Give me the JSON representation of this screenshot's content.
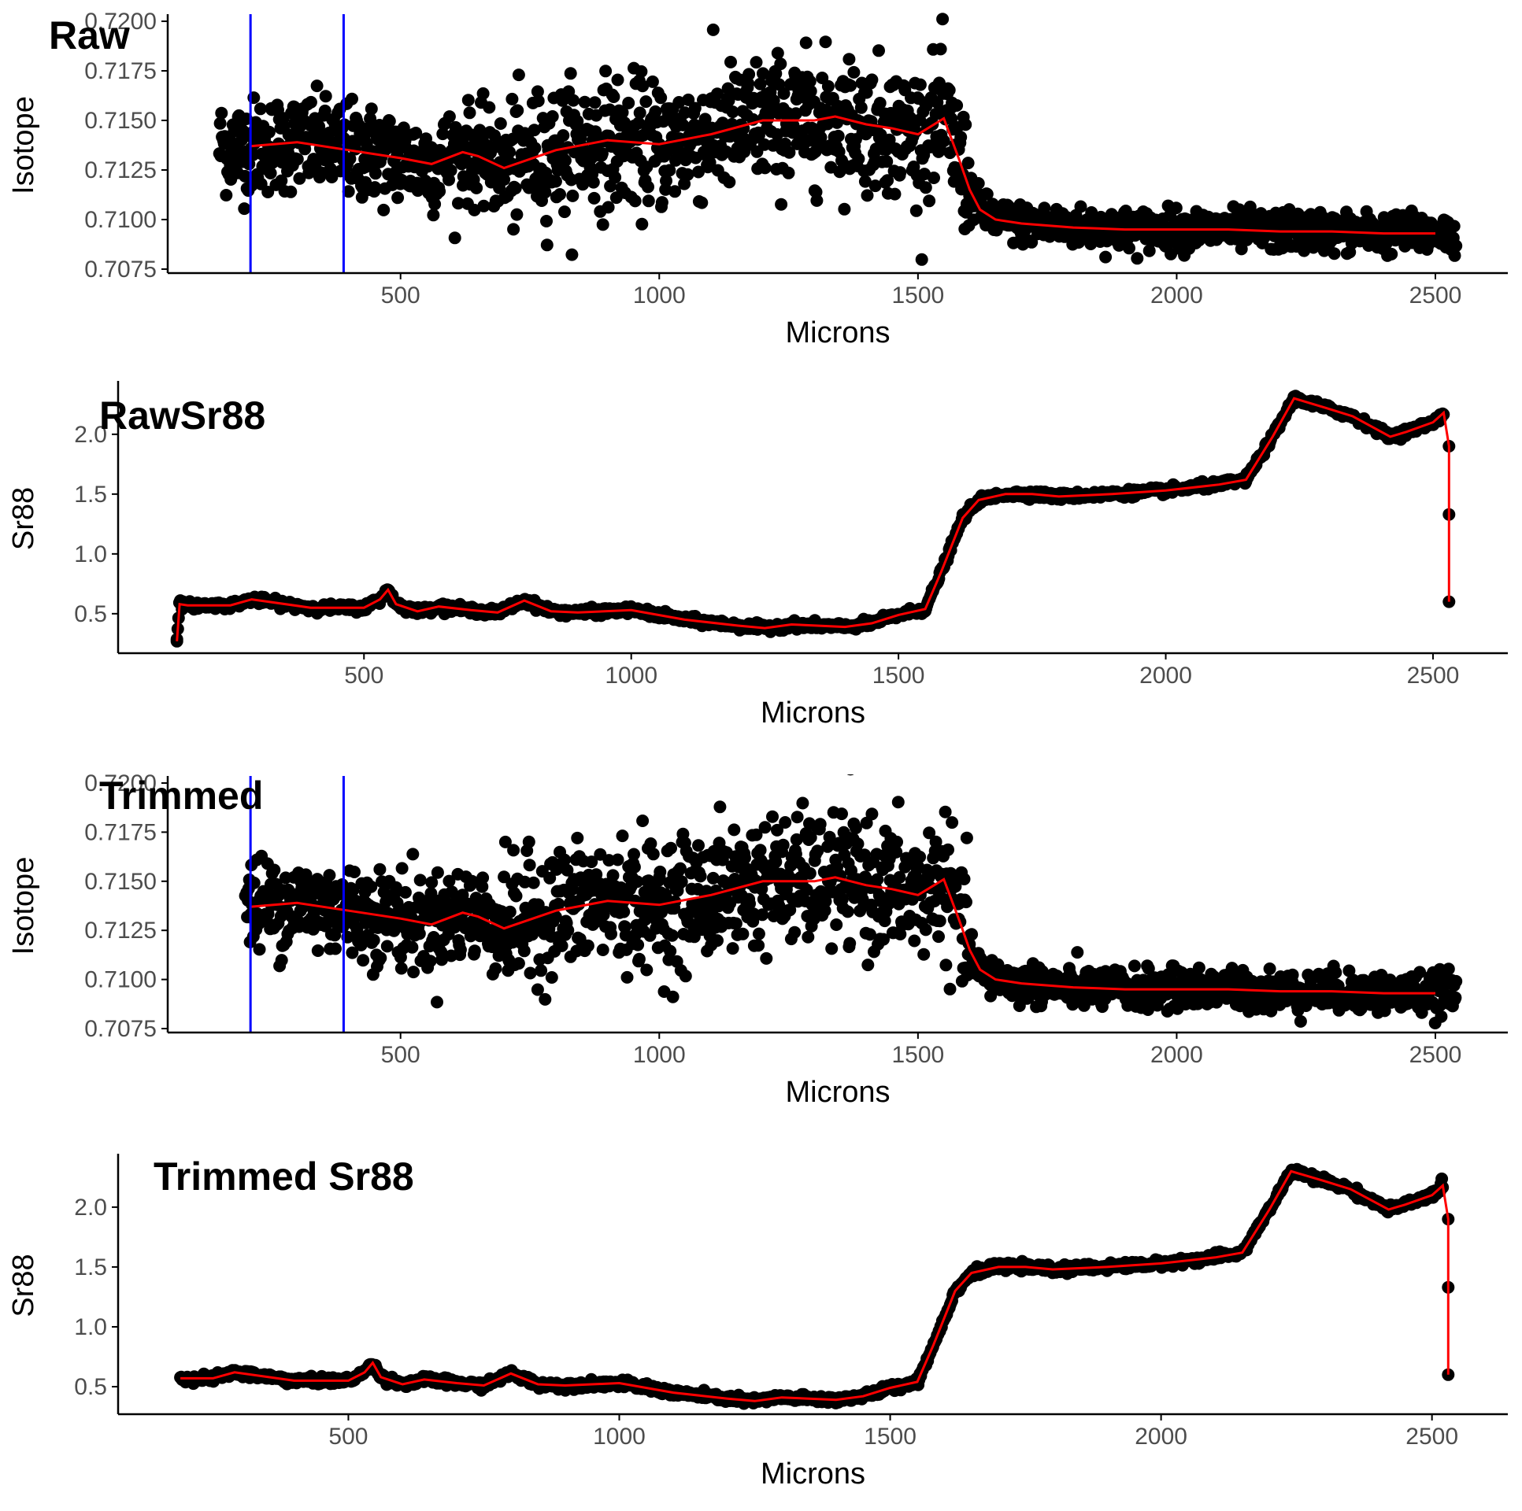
{
  "colors": {
    "points": "#000000",
    "smooth_line": "#ff0000",
    "trim_lines": "#0000ff",
    "axis": "#000000",
    "tick_text": "#4d4d4d"
  },
  "chart_data": [
    {
      "type": "scatter",
      "title": "Raw",
      "xlabel": "Microns",
      "ylabel": "Isotope",
      "xlim": [
        50,
        2640
      ],
      "ylim": [
        0.7073,
        0.7202
      ],
      "x_ticks": [
        500,
        1000,
        1500,
        2000,
        2500
      ],
      "x_tick_labels": [
        "500",
        "1000",
        "1500",
        "2000",
        "2500"
      ],
      "y_ticks": [
        0.7075,
        0.71,
        0.7125,
        0.715,
        0.7175,
        0.72
      ],
      "y_tick_labels": [
        "0.7075",
        "0.7100",
        "0.7125",
        "0.7150",
        "0.7175",
        "0.7200"
      ],
      "grid": false,
      "vertical_lines_x": [
        210,
        390
      ],
      "smooth_series": {
        "x": [
          210,
          300,
          400,
          500,
          560,
          620,
          650,
          700,
          800,
          900,
          1000,
          1100,
          1200,
          1300,
          1340,
          1400,
          1450,
          1500,
          1550,
          1580,
          1600,
          1620,
          1650,
          1700,
          1800,
          1900,
          2000,
          2100,
          2200,
          2300,
          2400,
          2500
        ],
        "y": [
          0.7137,
          0.7139,
          0.7135,
          0.7131,
          0.7128,
          0.7134,
          0.7132,
          0.7126,
          0.7135,
          0.714,
          0.7138,
          0.7143,
          0.715,
          0.715,
          0.7152,
          0.7148,
          0.7146,
          0.7143,
          0.7151,
          0.713,
          0.7115,
          0.7105,
          0.71,
          0.7098,
          0.7096,
          0.7095,
          0.7095,
          0.7095,
          0.7094,
          0.7094,
          0.7093,
          0.7093
        ]
      },
      "scatter_spread": [
        {
          "x": [
            150,
            700
          ],
          "sd": 0.0012
        },
        {
          "x": [
            700,
            1600
          ],
          "sd": 0.0016
        },
        {
          "x": [
            1600,
            2540
          ],
          "sd": 0.0005
        }
      ]
    },
    {
      "type": "scatter",
      "title": "RawSr88",
      "xlabel": "Microns",
      "ylabel": "Sr88",
      "xlim": [
        40,
        2640
      ],
      "ylim": [
        0.17,
        2.42
      ],
      "x_ticks": [
        500,
        1000,
        1500,
        2000,
        2500
      ],
      "x_tick_labels": [
        "500",
        "1000",
        "1500",
        "2000",
        "2500"
      ],
      "y_ticks": [
        0.5,
        1.0,
        1.5,
        2.0
      ],
      "y_tick_labels": [
        "0.5",
        "1.0",
        "1.5",
        "2.0"
      ],
      "grid": false,
      "smooth_series": {
        "x": [
          150,
          155,
          170,
          250,
          290,
          400,
          500,
          530,
          545,
          560,
          600,
          640,
          700,
          750,
          800,
          850,
          900,
          1000,
          1100,
          1200,
          1250,
          1300,
          1400,
          1450,
          1500,
          1550,
          1580,
          1620,
          1650,
          1700,
          1750,
          1800,
          1900,
          2000,
          2100,
          2150,
          2200,
          2240,
          2300,
          2350,
          2420,
          2450,
          2500,
          2520,
          2530,
          2530,
          2530
        ],
        "y": [
          0.27,
          0.58,
          0.57,
          0.57,
          0.62,
          0.55,
          0.55,
          0.62,
          0.7,
          0.58,
          0.52,
          0.56,
          0.53,
          0.51,
          0.61,
          0.52,
          0.51,
          0.53,
          0.45,
          0.4,
          0.38,
          0.41,
          0.39,
          0.42,
          0.49,
          0.54,
          0.85,
          1.3,
          1.45,
          1.5,
          1.5,
          1.48,
          1.5,
          1.53,
          1.58,
          1.62,
          1.98,
          2.3,
          2.22,
          2.15,
          1.98,
          2.02,
          2.1,
          2.18,
          1.9,
          1.33,
          0.6
        ]
      },
      "isolated_points": {
        "x": [
          150,
          2530,
          2530,
          2530
        ],
        "y": [
          0.27,
          1.9,
          1.33,
          0.6
        ]
      }
    },
    {
      "type": "scatter",
      "title": "Trimmed",
      "xlabel": "Microns",
      "ylabel": "Isotope",
      "xlim": [
        50,
        2640
      ],
      "ylim": [
        0.7073,
        0.7202
      ],
      "x_ticks": [
        500,
        1000,
        1500,
        2000,
        2500
      ],
      "x_tick_labels": [
        "500",
        "1000",
        "1500",
        "2000",
        "2500"
      ],
      "y_ticks": [
        0.7075,
        0.71,
        0.7125,
        0.715,
        0.7175,
        0.72
      ],
      "y_tick_labels": [
        "0.7075",
        "0.7100",
        "0.7125",
        "0.7150",
        "0.7175",
        "0.7200"
      ],
      "grid": false,
      "vertical_lines_x": [
        210,
        390
      ],
      "smooth_series": {
        "x": [
          210,
          300,
          400,
          500,
          560,
          620,
          650,
          700,
          800,
          900,
          1000,
          1100,
          1200,
          1300,
          1340,
          1400,
          1450,
          1500,
          1550,
          1580,
          1600,
          1620,
          1650,
          1700,
          1800,
          1900,
          2000,
          2100,
          2200,
          2300,
          2400,
          2500
        ],
        "y": [
          0.7137,
          0.7139,
          0.7135,
          0.7131,
          0.7128,
          0.7134,
          0.7132,
          0.7126,
          0.7135,
          0.714,
          0.7138,
          0.7143,
          0.715,
          0.715,
          0.7152,
          0.7148,
          0.7146,
          0.7143,
          0.7151,
          0.713,
          0.7115,
          0.7105,
          0.71,
          0.7098,
          0.7096,
          0.7095,
          0.7095,
          0.7095,
          0.7094,
          0.7094,
          0.7093,
          0.7093
        ]
      },
      "scatter_spread": [
        {
          "x": [
            200,
            700
          ],
          "sd": 0.0012
        },
        {
          "x": [
            700,
            1600
          ],
          "sd": 0.0016
        },
        {
          "x": [
            1600,
            2540
          ],
          "sd": 0.0005
        }
      ]
    },
    {
      "type": "scatter",
      "title": "Trimmed Sr88",
      "xlabel": "Microns",
      "ylabel": "Sr88",
      "xlim": [
        75,
        2640
      ],
      "ylim": [
        0.27,
        2.42
      ],
      "x_ticks": [
        500,
        1000,
        1500,
        2000,
        2500
      ],
      "x_tick_labels": [
        "500",
        "1000",
        "1500",
        "2000",
        "2500"
      ],
      "y_ticks": [
        0.5,
        1.0,
        1.5,
        2.0
      ],
      "y_tick_labels": [
        "0.5",
        "1.0",
        "1.5",
        "2.0"
      ],
      "grid": false,
      "smooth_series": {
        "x": [
          190,
          250,
          290,
          400,
          500,
          530,
          545,
          560,
          600,
          640,
          700,
          750,
          800,
          850,
          900,
          1000,
          1100,
          1200,
          1250,
          1300,
          1400,
          1450,
          1500,
          1550,
          1580,
          1620,
          1650,
          1700,
          1750,
          1800,
          1900,
          2000,
          2100,
          2150,
          2200,
          2240,
          2300,
          2350,
          2420,
          2450,
          2500,
          2520,
          2530,
          2530,
          2530
        ],
        "y": [
          0.57,
          0.57,
          0.62,
          0.55,
          0.55,
          0.62,
          0.7,
          0.58,
          0.52,
          0.56,
          0.53,
          0.51,
          0.61,
          0.52,
          0.51,
          0.53,
          0.45,
          0.4,
          0.38,
          0.41,
          0.39,
          0.42,
          0.49,
          0.54,
          0.85,
          1.3,
          1.45,
          1.5,
          1.5,
          1.48,
          1.5,
          1.53,
          1.58,
          1.62,
          1.98,
          2.3,
          2.22,
          2.15,
          1.98,
          2.02,
          2.1,
          2.18,
          1.9,
          1.33,
          0.6
        ]
      },
      "isolated_points": {
        "x": [
          2530,
          2530,
          2530
        ],
        "y": [
          1.9,
          1.33,
          0.6
        ]
      }
    }
  ]
}
